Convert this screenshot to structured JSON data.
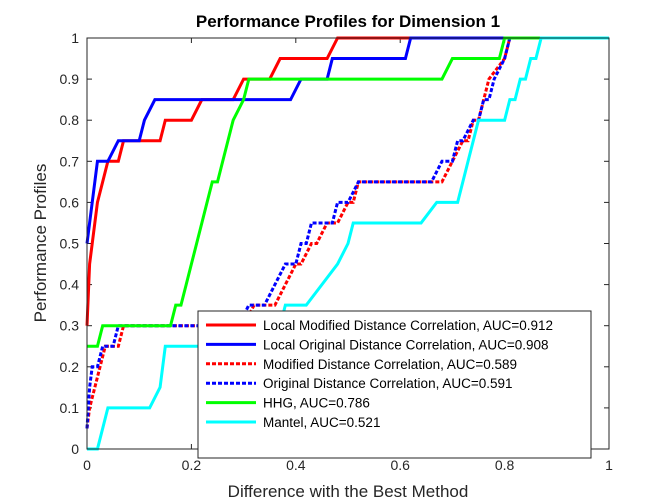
{
  "chart_data": {
    "type": "line",
    "title": "Performance Profiles for Dimension 1",
    "xlabel": "Difference with the Best Method",
    "ylabel": "Performance Profiles",
    "xlim": [
      0,
      1
    ],
    "ylim": [
      0,
      1
    ],
    "xticks": [
      "0",
      "0.2",
      "0.4",
      "0.6",
      "0.8",
      "1"
    ],
    "yticks": [
      "0",
      "0.1",
      "0.2",
      "0.3",
      "0.4",
      "0.5",
      "0.6",
      "0.7",
      "0.8",
      "0.9",
      "1"
    ],
    "grid": false,
    "legend_position": "bottom-right",
    "series": [
      {
        "name": "Local Modified Distance Correlation, AUC=0.912",
        "color": "#ff0000",
        "style": "solid",
        "x": [
          0,
          0.005,
          0.01,
          0.02,
          0.03,
          0.04,
          0.05,
          0.06,
          0.07,
          0.08,
          0.12,
          0.14,
          0.15,
          0.16,
          0.2,
          0.22,
          0.28,
          0.3,
          0.35,
          0.37,
          0.46,
          0.48,
          1
        ],
        "y": [
          0.3,
          0.45,
          0.5,
          0.6,
          0.65,
          0.7,
          0.7,
          0.7,
          0.75,
          0.75,
          0.75,
          0.75,
          0.8,
          0.8,
          0.8,
          0.85,
          0.85,
          0.9,
          0.9,
          0.95,
          0.95,
          1,
          1
        ]
      },
      {
        "name": "Local Original Distance Correlation, AUC=0.908",
        "color": "#0000ff",
        "style": "solid",
        "x": [
          0,
          0.005,
          0.02,
          0.04,
          0.06,
          0.1,
          0.11,
          0.13,
          0.26,
          0.29,
          0.39,
          0.41,
          0.46,
          0.47,
          0.61,
          0.62,
          1
        ],
        "y": [
          0.5,
          0.55,
          0.7,
          0.7,
          0.75,
          0.75,
          0.8,
          0.85,
          0.85,
          0.85,
          0.85,
          0.9,
          0.9,
          0.95,
          0.95,
          1,
          1
        ]
      },
      {
        "name": "Modified Distance Correlation, AUC=0.589",
        "color": "#ff0000",
        "style": "dashed",
        "x": [
          0,
          0.005,
          0.015,
          0.025,
          0.035,
          0.045,
          0.06,
          0.07,
          0.075,
          0.3,
          0.32,
          0.36,
          0.38,
          0.4,
          0.41,
          0.43,
          0.44,
          0.46,
          0.48,
          0.5,
          0.51,
          0.52,
          0.53,
          0.54,
          0.55,
          0.68,
          0.7,
          0.72,
          0.73,
          0.74,
          0.75,
          0.76,
          0.77,
          0.8,
          0.81,
          1
        ],
        "y": [
          0.05,
          0.1,
          0.15,
          0.2,
          0.25,
          0.25,
          0.25,
          0.3,
          0.3,
          0.3,
          0.35,
          0.35,
          0.4,
          0.45,
          0.45,
          0.5,
          0.5,
          0.55,
          0.55,
          0.6,
          0.6,
          0.65,
          0.65,
          0.65,
          0.65,
          0.65,
          0.7,
          0.75,
          0.75,
          0.8,
          0.8,
          0.85,
          0.9,
          0.95,
          1,
          1
        ]
      },
      {
        "name": "Original Distance Correlation, AUC=0.591",
        "color": "#0000ff",
        "style": "dashed",
        "x": [
          0,
          0.005,
          0.01,
          0.02,
          0.03,
          0.04,
          0.05,
          0.06,
          0.07,
          0.29,
          0.31,
          0.34,
          0.36,
          0.38,
          0.4,
          0.41,
          0.42,
          0.43,
          0.45,
          0.47,
          0.48,
          0.49,
          0.5,
          0.52,
          0.54,
          0.55,
          0.66,
          0.68,
          0.7,
          0.71,
          0.72,
          0.74,
          0.75,
          0.76,
          0.77,
          0.78,
          0.8,
          0.81,
          1
        ],
        "y": [
          0.05,
          0.15,
          0.2,
          0.2,
          0.25,
          0.25,
          0.25,
          0.3,
          0.3,
          0.3,
          0.35,
          0.35,
          0.4,
          0.45,
          0.45,
          0.5,
          0.5,
          0.55,
          0.55,
          0.55,
          0.6,
          0.6,
          0.6,
          0.65,
          0.65,
          0.65,
          0.65,
          0.7,
          0.7,
          0.75,
          0.75,
          0.8,
          0.8,
          0.85,
          0.85,
          0.9,
          0.95,
          1,
          1
        ]
      },
      {
        "name": "HHG, AUC=0.786",
        "color": "#00ff00",
        "style": "solid",
        "x": [
          0,
          0.02,
          0.03,
          0.16,
          0.17,
          0.18,
          0.19,
          0.2,
          0.21,
          0.22,
          0.23,
          0.24,
          0.25,
          0.26,
          0.27,
          0.28,
          0.3,
          0.31,
          0.32,
          0.33,
          0.34,
          0.35,
          0.36,
          0.67,
          0.68,
          0.7,
          0.79,
          0.8,
          0.87,
          0.88,
          1
        ],
        "y": [
          0.25,
          0.25,
          0.3,
          0.3,
          0.35,
          0.35,
          0.4,
          0.45,
          0.5,
          0.55,
          0.6,
          0.65,
          0.65,
          0.7,
          0.75,
          0.8,
          0.85,
          0.9,
          0.9,
          0.9,
          0.9,
          0.9,
          0.9,
          0.9,
          0.9,
          0.95,
          0.95,
          1,
          1,
          1,
          1
        ]
      },
      {
        "name": "Mantel, AUC=0.521",
        "color": "#00ffff",
        "style": "solid",
        "x": [
          0,
          0.02,
          0.03,
          0.04,
          0.06,
          0.12,
          0.14,
          0.15,
          0.3,
          0.31,
          0.37,
          0.38,
          0.42,
          0.45,
          0.48,
          0.5,
          0.51,
          0.52,
          0.55,
          0.64,
          0.67,
          0.71,
          0.72,
          0.73,
          0.74,
          0.75,
          0.8,
          0.81,
          0.82,
          0.83,
          0.84,
          0.85,
          0.86,
          0.87,
          0.88,
          0.89,
          0.9,
          1
        ],
        "y": [
          0,
          0,
          0.05,
          0.1,
          0.1,
          0.1,
          0.15,
          0.25,
          0.25,
          0.3,
          0.3,
          0.35,
          0.35,
          0.4,
          0.45,
          0.5,
          0.55,
          0.55,
          0.55,
          0.55,
          0.6,
          0.6,
          0.65,
          0.7,
          0.75,
          0.8,
          0.8,
          0.85,
          0.85,
          0.9,
          0.9,
          0.95,
          0.95,
          1,
          1,
          1,
          1,
          1
        ]
      }
    ]
  }
}
